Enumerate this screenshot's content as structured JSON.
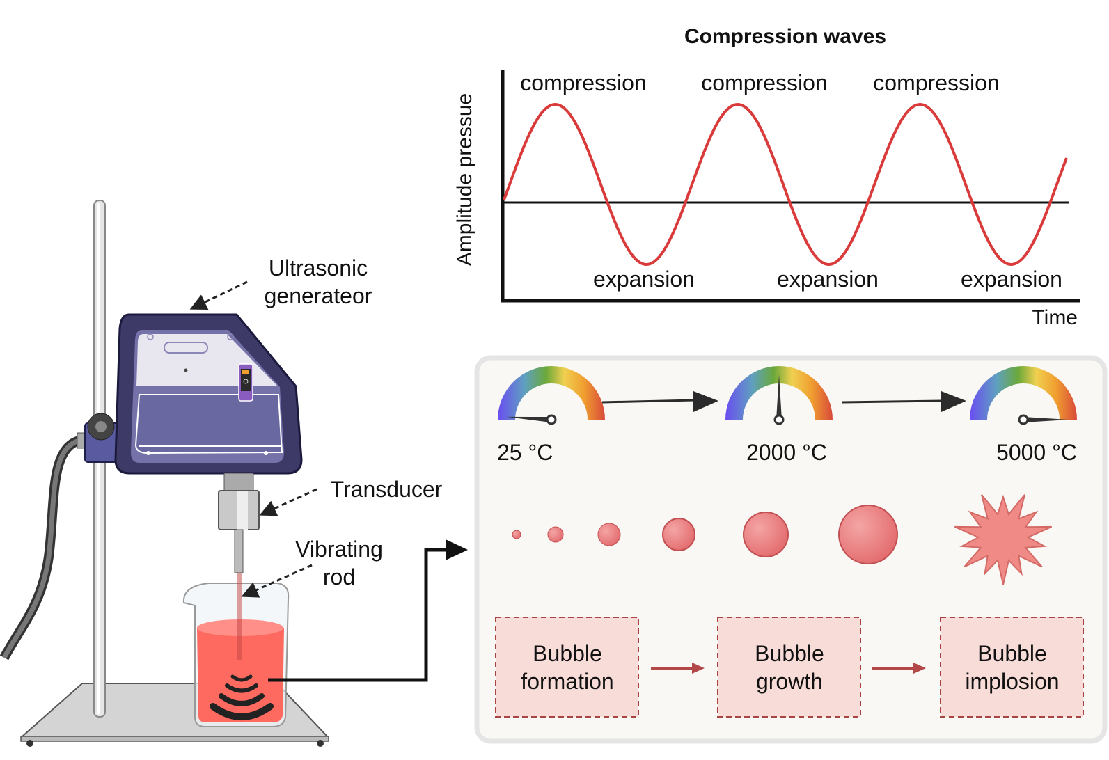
{
  "chart_data": {
    "type": "line",
    "title": "Compression waves",
    "xlabel": "Time",
    "ylabel": "Amplitude pressue",
    "series": [
      {
        "name": "pressure wave",
        "shape": "sine",
        "cycles": 3
      }
    ],
    "annotations": {
      "peaks": [
        "compression",
        "compression",
        "compression"
      ],
      "troughs": [
        "expansion",
        "expansion",
        "expansion"
      ]
    },
    "colors": {
      "wave": "#d93b3b",
      "axis": "#111111"
    }
  },
  "apparatus": {
    "generator_label": [
      "Ultrasonic",
      "generateor"
    ],
    "transducer_label": "Transducer",
    "rod_label": [
      "Vibrating",
      "rod"
    ]
  },
  "process": {
    "temperatures": [
      "25 °C",
      "2000 °C",
      "5000 °C"
    ],
    "gauge_levels": [
      0.02,
      0.5,
      1.0
    ],
    "stages": [
      {
        "line1": "Bubble",
        "line2": "formation"
      },
      {
        "line1": "Bubble",
        "line2": "growth"
      },
      {
        "line1": "Bubble",
        "line2": "implosion"
      }
    ],
    "colors": {
      "bubble": "#e8777a",
      "box_fill": "#f8dcd8",
      "box_border": "#a94444",
      "panel": "#f9f8f4"
    }
  }
}
